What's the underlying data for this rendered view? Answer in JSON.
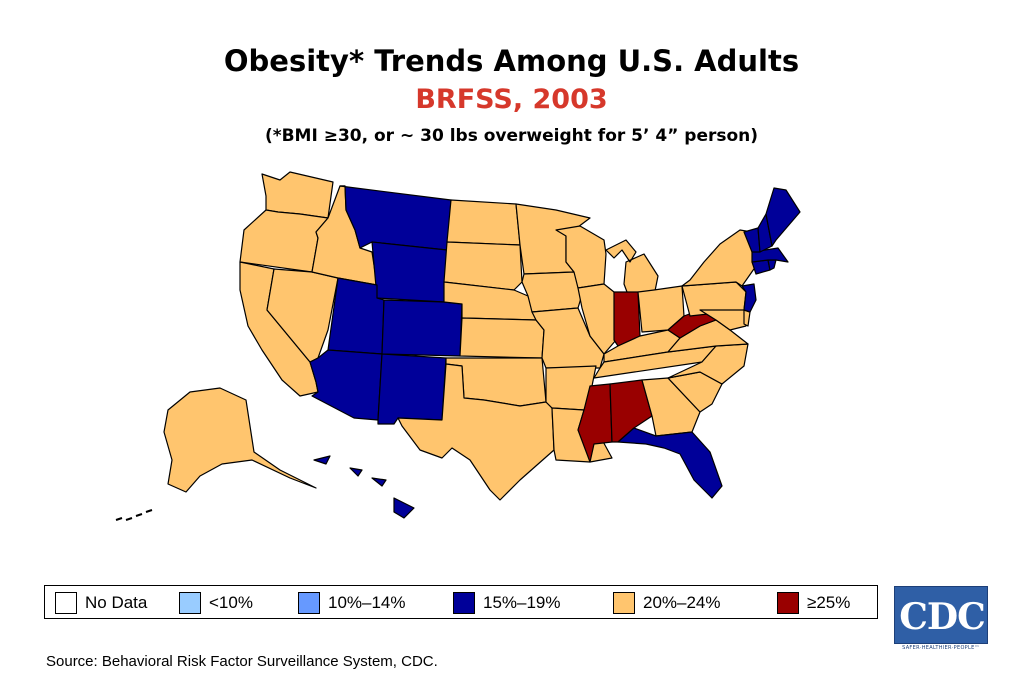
{
  "title": "Obesity* Trends Among U.S. Adults",
  "subtitle": "BRFSS, 2003",
  "note": "(*BMI ≥30, or ~ 30 lbs overweight for 5’ 4” person)",
  "colors": {
    "no_data": "#ffffff",
    "lt10": "#99ccff",
    "c10_14": "#6699ff",
    "c15_19": "#000099",
    "c20_24": "#ffc56e",
    "c25plus": "#990000"
  },
  "legend": [
    {
      "label": "No Data",
      "color": "#ffffff"
    },
    {
      "label": "<10%",
      "color": "#99ccff"
    },
    {
      "label": "10%–14%",
      "color": "#6699ff"
    },
    {
      "label": "15%–19%",
      "color": "#000099"
    },
    {
      "label": "20%–24%",
      "color": "#ffc56e"
    },
    {
      "label": "≥25%",
      "color": "#990000"
    }
  ],
  "states": {
    "WA": "20%–24%",
    "OR": "20%–24%",
    "CA": "20%–24%",
    "NV": "20%–24%",
    "ID": "20%–24%",
    "MT": "15%–19%",
    "WY": "15%–19%",
    "UT": "15%–19%",
    "CO": "15%–19%",
    "AZ": "15%–19%",
    "NM": "15%–19%",
    "ND": "20%–24%",
    "SD": "20%–24%",
    "NE": "20%–24%",
    "KS": "20%–24%",
    "OK": "20%–24%",
    "TX": "20%–24%",
    "MN": "20%–24%",
    "IA": "20%–24%",
    "MO": "20%–24%",
    "AR": "20%–24%",
    "LA": "20%–24%",
    "WI": "20%–24%",
    "MI": "20%–24%",
    "IL": "20%–24%",
    "IN": "≥25%",
    "OH": "20%–24%",
    "KY": "20%–24%",
    "TN": "20%–24%",
    "MS": "≥25%",
    "AL": "≥25%",
    "GA": "20%–24%",
    "FL": "15%–19%",
    "SC": "20%–24%",
    "NC": "20%–24%",
    "VA": "20%–24%",
    "WV": "≥25%",
    "PA": "20%–24%",
    "NY": "20%–24%",
    "MD": "20%–24%",
    "DE": "20%–24%",
    "NJ": "15%–19%",
    "CT": "15%–19%",
    "RI": "15%–19%",
    "MA": "15%–19%",
    "VT": "15%–19%",
    "NH": "15%–19%",
    "ME": "15%–19%",
    "AK": "20%–24%",
    "HI": "15%–19%"
  },
  "source": "Source: Behavioral Risk Factor Surveillance System, CDC.",
  "logo": {
    "text": "CDC",
    "tagline": "SAFER·HEALTHIER·PEOPLE™"
  }
}
